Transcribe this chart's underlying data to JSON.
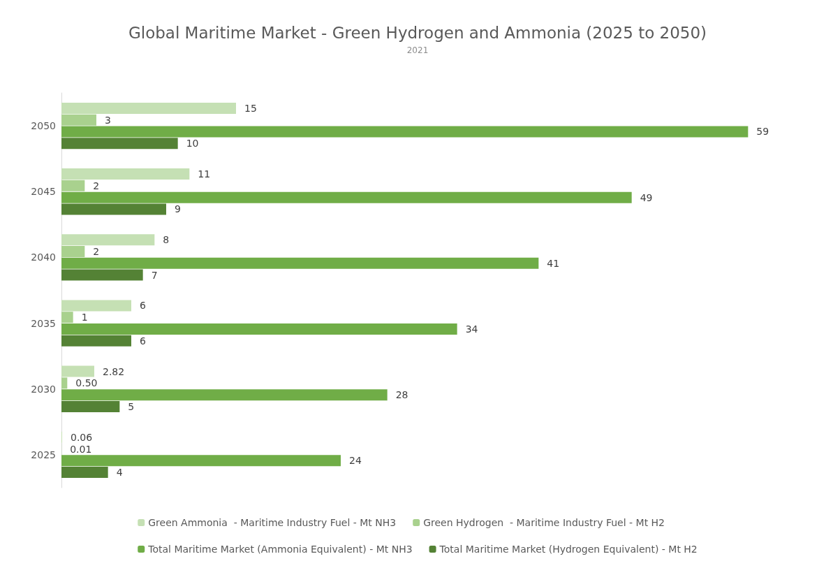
{
  "chart_data": {
    "type": "bar",
    "orientation": "horizontal",
    "title": "Global Maritime Market - Green Hydrogen and Ammonia (2025 to 2050)",
    "subtitle": "2021",
    "categories": [
      "2050",
      "2045",
      "2040",
      "2035",
      "2030",
      "2025"
    ],
    "legend": "bottom",
    "series": [
      {
        "name": "Green Ammonia  - Maritime Industry Fuel - Mt NH3",
        "color": "#c5e0b4",
        "values": [
          15,
          11,
          8,
          6,
          2.82,
          0.06
        ],
        "value_labels": [
          "15",
          "11",
          "8",
          "6",
          "2.82",
          "0.06"
        ]
      },
      {
        "name": "Green Hydrogen  - Maritime Industry Fuel - Mt H2",
        "color": "#a9d18e",
        "values": [
          3,
          2,
          2,
          1,
          0.5,
          0.01
        ],
        "value_labels": [
          "3",
          "2",
          "2",
          "1",
          "0.50",
          "0.01"
        ]
      },
      {
        "name": "Total Maritime Market (Ammonia Equivalent) - Mt NH3",
        "color": "#70ad47",
        "values": [
          59,
          49,
          41,
          34,
          28,
          24
        ],
        "value_labels": [
          "59",
          "49",
          "41",
          "34",
          "28",
          "24"
        ]
      },
      {
        "name": "Total Maritime Market (Hydrogen Equivalent) - Mt H2",
        "color": "#548235",
        "values": [
          10,
          9,
          7,
          6,
          5,
          4
        ],
        "value_labels": [
          "10",
          "9",
          "7",
          "6",
          "5",
          "4"
        ]
      }
    ]
  }
}
